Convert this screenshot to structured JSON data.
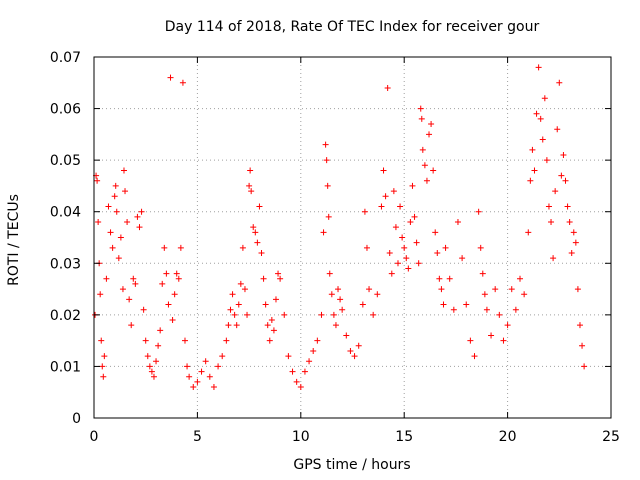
{
  "chart_data": {
    "type": "scatter",
    "title": "Day 114 of 2018, Rate Of TEC Index for receiver gour",
    "xlabel": "GPS time / hours",
    "ylabel": "ROTI / TECUs",
    "xlim": [
      0,
      25
    ],
    "ylim": [
      0,
      0.07
    ],
    "x_ticks": [
      "0",
      "5",
      "10",
      "15",
      "20",
      "25"
    ],
    "y_ticks": [
      "0",
      "0.01",
      "0.02",
      "0.03",
      "0.04",
      "0.05",
      "0.06",
      "0.07"
    ],
    "grid": true,
    "marker": "plus",
    "color": "#ff0000",
    "series": [
      {
        "points": [
          [
            0.05,
            0.02
          ],
          [
            0.1,
            0.047
          ],
          [
            0.15,
            0.046
          ],
          [
            0.2,
            0.038
          ],
          [
            0.25,
            0.03
          ],
          [
            0.3,
            0.024
          ],
          [
            0.35,
            0.015
          ],
          [
            0.4,
            0.01
          ],
          [
            0.45,
            0.008
          ],
          [
            0.5,
            0.012
          ],
          [
            0.6,
            0.027
          ],
          [
            0.7,
            0.041
          ],
          [
            0.8,
            0.036
          ],
          [
            0.9,
            0.033
          ],
          [
            1.0,
            0.043
          ],
          [
            1.05,
            0.045
          ],
          [
            1.1,
            0.04
          ],
          [
            1.2,
            0.031
          ],
          [
            1.3,
            0.035
          ],
          [
            1.4,
            0.025
          ],
          [
            1.5,
            0.044
          ],
          [
            1.45,
            0.048
          ],
          [
            1.6,
            0.038
          ],
          [
            1.7,
            0.023
          ],
          [
            1.8,
            0.018
          ],
          [
            1.9,
            0.027
          ],
          [
            2.0,
            0.026
          ],
          [
            2.1,
            0.039
          ],
          [
            2.2,
            0.037
          ],
          [
            2.3,
            0.04
          ],
          [
            2.4,
            0.021
          ],
          [
            2.5,
            0.015
          ],
          [
            2.6,
            0.012
          ],
          [
            2.7,
            0.01
          ],
          [
            2.8,
            0.009
          ],
          [
            2.9,
            0.008
          ],
          [
            3.0,
            0.011
          ],
          [
            3.1,
            0.014
          ],
          [
            3.2,
            0.017
          ],
          [
            3.3,
            0.026
          ],
          [
            3.4,
            0.033
          ],
          [
            3.5,
            0.028
          ],
          [
            3.6,
            0.022
          ],
          [
            3.7,
            0.066
          ],
          [
            3.8,
            0.019
          ],
          [
            3.9,
            0.024
          ],
          [
            4.0,
            0.028
          ],
          [
            4.1,
            0.027
          ],
          [
            4.2,
            0.033
          ],
          [
            4.3,
            0.065
          ],
          [
            4.4,
            0.015
          ],
          [
            4.5,
            0.01
          ],
          [
            4.6,
            0.008
          ],
          [
            4.8,
            0.006
          ],
          [
            5.0,
            0.007
          ],
          [
            5.2,
            0.009
          ],
          [
            5.4,
            0.011
          ],
          [
            5.6,
            0.008
          ],
          [
            5.8,
            0.006
          ],
          [
            6.0,
            0.01
          ],
          [
            6.2,
            0.012
          ],
          [
            6.4,
            0.015
          ],
          [
            6.5,
            0.018
          ],
          [
            6.6,
            0.021
          ],
          [
            6.7,
            0.024
          ],
          [
            6.8,
            0.02
          ],
          [
            6.9,
            0.018
          ],
          [
            7.0,
            0.022
          ],
          [
            7.1,
            0.026
          ],
          [
            7.2,
            0.033
          ],
          [
            7.3,
            0.025
          ],
          [
            7.4,
            0.02
          ],
          [
            7.5,
            0.045
          ],
          [
            7.55,
            0.048
          ],
          [
            7.6,
            0.044
          ],
          [
            7.7,
            0.037
          ],
          [
            7.8,
            0.036
          ],
          [
            7.9,
            0.034
          ],
          [
            8.0,
            0.041
          ],
          [
            8.1,
            0.032
          ],
          [
            8.2,
            0.027
          ],
          [
            8.3,
            0.022
          ],
          [
            8.4,
            0.018
          ],
          [
            8.5,
            0.015
          ],
          [
            8.6,
            0.019
          ],
          [
            8.7,
            0.017
          ],
          [
            8.8,
            0.023
          ],
          [
            8.9,
            0.028
          ],
          [
            9.0,
            0.027
          ],
          [
            9.2,
            0.02
          ],
          [
            9.4,
            0.012
          ],
          [
            9.6,
            0.009
          ],
          [
            9.8,
            0.007
          ],
          [
            10.0,
            0.006
          ],
          [
            10.2,
            0.009
          ],
          [
            10.4,
            0.011
          ],
          [
            10.6,
            0.013
          ],
          [
            10.8,
            0.015
          ],
          [
            11.0,
            0.02
          ],
          [
            11.1,
            0.036
          ],
          [
            11.2,
            0.053
          ],
          [
            11.25,
            0.05
          ],
          [
            11.3,
            0.045
          ],
          [
            11.35,
            0.039
          ],
          [
            11.4,
            0.028
          ],
          [
            11.5,
            0.024
          ],
          [
            11.6,
            0.02
          ],
          [
            11.7,
            0.018
          ],
          [
            11.8,
            0.025
          ],
          [
            11.9,
            0.023
          ],
          [
            12.0,
            0.021
          ],
          [
            12.2,
            0.016
          ],
          [
            12.4,
            0.013
          ],
          [
            12.6,
            0.012
          ],
          [
            12.8,
            0.014
          ],
          [
            13.0,
            0.022
          ],
          [
            13.1,
            0.04
          ],
          [
            13.2,
            0.033
          ],
          [
            13.3,
            0.025
          ],
          [
            13.5,
            0.02
          ],
          [
            13.7,
            0.024
          ],
          [
            13.9,
            0.041
          ],
          [
            14.0,
            0.048
          ],
          [
            14.1,
            0.043
          ],
          [
            14.2,
            0.064
          ],
          [
            14.3,
            0.032
          ],
          [
            14.4,
            0.028
          ],
          [
            14.5,
            0.044
          ],
          [
            14.6,
            0.037
          ],
          [
            14.7,
            0.03
          ],
          [
            14.8,
            0.041
          ],
          [
            14.9,
            0.035
          ],
          [
            15.0,
            0.033
          ],
          [
            15.1,
            0.031
          ],
          [
            15.2,
            0.029
          ],
          [
            15.3,
            0.038
          ],
          [
            15.4,
            0.045
          ],
          [
            15.5,
            0.039
          ],
          [
            15.6,
            0.034
          ],
          [
            15.7,
            0.03
          ],
          [
            15.8,
            0.06
          ],
          [
            15.85,
            0.058
          ],
          [
            15.9,
            0.052
          ],
          [
            16.0,
            0.049
          ],
          [
            16.1,
            0.046
          ],
          [
            16.2,
            0.055
          ],
          [
            16.3,
            0.057
          ],
          [
            16.4,
            0.048
          ],
          [
            16.5,
            0.036
          ],
          [
            16.6,
            0.032
          ],
          [
            16.7,
            0.027
          ],
          [
            16.8,
            0.025
          ],
          [
            16.9,
            0.022
          ],
          [
            17.0,
            0.033
          ],
          [
            17.2,
            0.027
          ],
          [
            17.4,
            0.021
          ],
          [
            17.6,
            0.038
          ],
          [
            17.8,
            0.031
          ],
          [
            18.0,
            0.022
          ],
          [
            18.2,
            0.015
          ],
          [
            18.4,
            0.012
          ],
          [
            18.6,
            0.04
          ],
          [
            18.7,
            0.033
          ],
          [
            18.8,
            0.028
          ],
          [
            18.9,
            0.024
          ],
          [
            19.0,
            0.021
          ],
          [
            19.2,
            0.016
          ],
          [
            19.4,
            0.025
          ],
          [
            19.6,
            0.02
          ],
          [
            19.8,
            0.015
          ],
          [
            20.0,
            0.018
          ],
          [
            20.2,
            0.025
          ],
          [
            20.4,
            0.021
          ],
          [
            20.6,
            0.027
          ],
          [
            20.8,
            0.024
          ],
          [
            21.0,
            0.036
          ],
          [
            21.1,
            0.046
          ],
          [
            21.2,
            0.052
          ],
          [
            21.3,
            0.048
          ],
          [
            21.4,
            0.059
          ],
          [
            21.5,
            0.068
          ],
          [
            21.6,
            0.058
          ],
          [
            21.7,
            0.054
          ],
          [
            21.8,
            0.062
          ],
          [
            21.9,
            0.05
          ],
          [
            22.0,
            0.041
          ],
          [
            22.1,
            0.038
          ],
          [
            22.2,
            0.031
          ],
          [
            22.3,
            0.044
          ],
          [
            22.4,
            0.056
          ],
          [
            22.5,
            0.065
          ],
          [
            22.6,
            0.047
          ],
          [
            22.7,
            0.051
          ],
          [
            22.8,
            0.046
          ],
          [
            22.9,
            0.041
          ],
          [
            23.0,
            0.038
          ],
          [
            23.1,
            0.032
          ],
          [
            23.2,
            0.036
          ],
          [
            23.3,
            0.034
          ],
          [
            23.4,
            0.025
          ],
          [
            23.5,
            0.018
          ],
          [
            23.6,
            0.014
          ],
          [
            23.7,
            0.01
          ]
        ]
      }
    ]
  }
}
